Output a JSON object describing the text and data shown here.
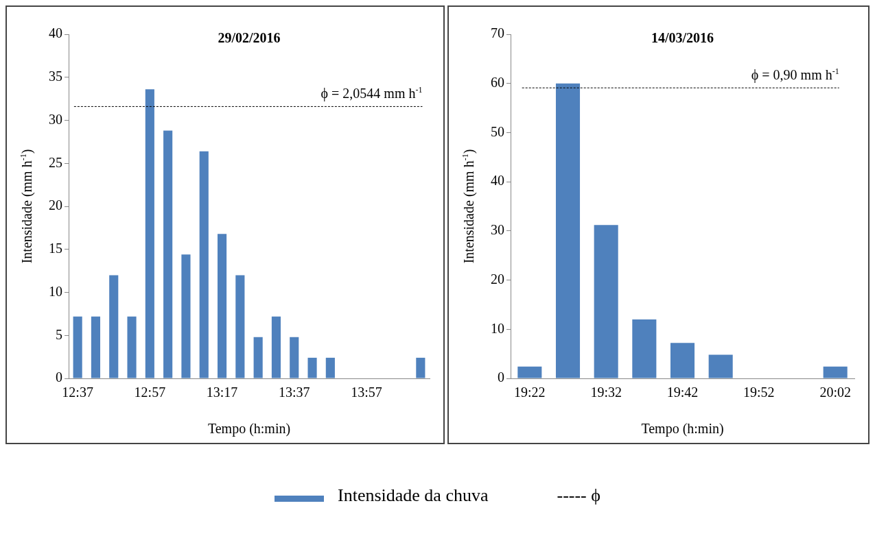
{
  "chart_data": [
    {
      "type": "bar",
      "title": "29/02/2016",
      "xlabel": "Tempo (h:min)",
      "ylabel": "Intensidade (mm h$^{-1}$)",
      "categories": [
        "12:37",
        null,
        null,
        null,
        "12:57",
        null,
        null,
        null,
        "13:17",
        null,
        null,
        null,
        "13:37",
        null,
        null,
        null,
        "13:57",
        null,
        null,
        null
      ],
      "series": [
        {
          "name": "Intensidade da chuva",
          "color": "#4f81bd",
          "values": [
            7.2,
            7.2,
            12,
            7.2,
            33.6,
            28.8,
            14.4,
            26.4,
            16.8,
            12,
            4.8,
            7.2,
            4.8,
            2.4,
            2.4,
            0,
            0,
            0,
            0,
            2.4
          ]
        }
      ],
      "ylim": [
        0,
        40
      ],
      "yticks": [
        0,
        5,
        10,
        15,
        20,
        25,
        30,
        35,
        40
      ],
      "grid": false,
      "legend": "bottom",
      "ref_lines": [
        {
          "axis": "y",
          "value": 31.6,
          "color": "#000000",
          "line_style": "dashed"
        }
      ],
      "annotations": [
        "ϕ = 2,0544 mm h$^{-1}$",
        "----- ϕ"
      ]
    },
    {
      "type": "bar",
      "title": "14/03/2016",
      "xlabel": "Tempo (h:min)",
      "ylabel": "Intensidade (mm h$^{-1}$)",
      "categories": [
        "19:22",
        null,
        "19:32",
        null,
        "19:42",
        null,
        "19:52",
        null,
        "20:02"
      ],
      "series": [
        {
          "color": "#4f81bd",
          "values": [
            2.4,
            60,
            31.2,
            12,
            7.2,
            4.8,
            0,
            0,
            2.4
          ]
        }
      ],
      "ylim": [
        0,
        70
      ],
      "yticks": [
        0,
        10,
        20,
        30,
        40,
        50,
        60,
        70
      ],
      "grid": false,
      "ref_lines": [
        {
          "axis": "y",
          "value": 59.1,
          "color": "#000000",
          "line_style": "dashed"
        }
      ],
      "annotations": [
        "ϕ = 0,90 mm h$^{-1}$"
      ]
    }
  ]
}
